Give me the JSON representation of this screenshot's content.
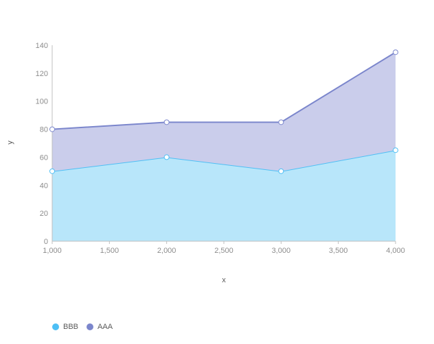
{
  "chart_data": {
    "type": "area",
    "stacked": true,
    "xlabel": "x",
    "ylabel": "y",
    "x": [
      1000,
      2000,
      3000,
      4000
    ],
    "x_tick_labels": [
      "1,000",
      "1,500",
      "2,000",
      "2,500",
      "3,000",
      "3,500",
      "4,000"
    ],
    "x_ticks": [
      1000,
      1500,
      2000,
      2500,
      3000,
      3500,
      4000
    ],
    "y_ticks": [
      0,
      20,
      40,
      60,
      80,
      100,
      120,
      140
    ],
    "y_tick_labels": [
      "0",
      "20",
      "40",
      "60",
      "80",
      "100",
      "120",
      "140"
    ],
    "xlim": [
      1000,
      4000
    ],
    "ylim": [
      0,
      140
    ],
    "grid": false,
    "legend_position": "bottom-left",
    "series": [
      {
        "name": "BBB",
        "values": [
          50,
          60,
          50,
          65
        ],
        "cumulative": [
          50,
          60,
          50,
          65
        ],
        "color": "#4dbff5",
        "fill": "#b8e6fa"
      },
      {
        "name": "AAA",
        "values": [
          30,
          25,
          35,
          70
        ],
        "cumulative": [
          80,
          85,
          85,
          135
        ],
        "color": "#7b86cc",
        "fill": "#cacdeb"
      }
    ]
  }
}
